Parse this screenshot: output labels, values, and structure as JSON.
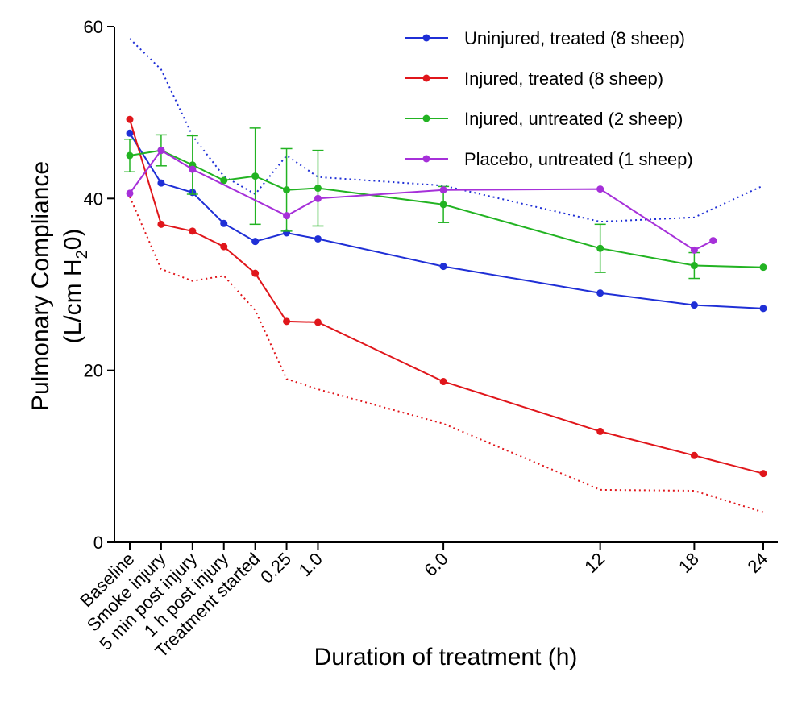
{
  "chart_data": {
    "type": "line",
    "title": "",
    "xlabel": "Duration of treatment (h)",
    "ylabel_line1": "Pulmonary Compliance",
    "ylabel_line2_parts": [
      "(L/cm H",
      "2",
      "0)"
    ],
    "ylim": [
      0,
      60
    ],
    "yticks": [
      0,
      20,
      40,
      60
    ],
    "grid": false,
    "legend_position": "top-right",
    "x_labels": [
      {
        "label": "Baseline",
        "x": -0.75
      },
      {
        "label": "Smoke injury",
        "x": -0.5
      },
      {
        "label": "5 min post injury",
        "x": -0.25
      },
      {
        "label": "1 h post injury",
        "x": 0
      },
      {
        "label": "Treatment started",
        "x": 0.25
      },
      {
        "label": "0.25",
        "x": 0.5
      },
      {
        "label": "1.0",
        "x": 0.75
      },
      {
        "label": "6.0",
        "x": 1.75
      },
      {
        "label": "12",
        "x": 3
      },
      {
        "label": "18",
        "x": 3.75
      },
      {
        "label": "24",
        "x": 4.3
      }
    ],
    "series": [
      {
        "name": "Uninjured, treated (8 sheep)",
        "color": "#1f2fd6",
        "x": [
          -0.75,
          -0.5,
          -0.25,
          0,
          0.25,
          0.5,
          0.75,
          1.75,
          3,
          3.75,
          4.3
        ],
        "y": [
          47.6,
          41.8,
          40.7,
          37.1,
          35.0,
          36.0,
          35.3,
          32.1,
          29.0,
          27.6,
          27.2
        ]
      },
      {
        "name": "Injured, treated (8 sheep)",
        "color": "#e0161b",
        "x": [
          -0.75,
          -0.5,
          -0.25,
          0,
          0.25,
          0.5,
          0.75,
          1.75,
          3,
          3.75,
          4.3
        ],
        "y": [
          49.2,
          37.0,
          36.2,
          34.4,
          31.3,
          25.7,
          25.6,
          18.7,
          12.9,
          10.1,
          8.0
        ]
      },
      {
        "name": "Injured, untreated (2 sheep)",
        "color": "#22b322",
        "x": [
          -0.75,
          -0.5,
          -0.25,
          0,
          0.25,
          0.5,
          0.75,
          1.75,
          3,
          3.75,
          4.3
        ],
        "y": [
          45.0,
          45.6,
          43.9,
          42.1,
          42.6,
          41.0,
          41.2,
          39.3,
          34.2,
          32.2,
          32.0
        ],
        "err": [
          1.9,
          1.8,
          3.4,
          0,
          5.6,
          4.8,
          4.4,
          2.1,
          2.8,
          1.5,
          0
        ]
      },
      {
        "name": "Placebo, untreated (1 sheep)",
        "color": "#a630d9",
        "x": [
          -0.75,
          -0.5,
          -0.25,
          0.5,
          0.75,
          1.75,
          3,
          3.75,
          3.9
        ],
        "y": [
          40.6,
          45.6,
          43.4,
          38.0,
          40.0,
          41.0,
          41.1,
          34.0,
          35.1
        ]
      }
    ],
    "bands": [
      {
        "color": "#1f2fd6",
        "x": [
          -0.75,
          -0.5,
          -0.25,
          0,
          0.25,
          0.5,
          0.75,
          1.75,
          3,
          3.75,
          4.3
        ],
        "y": [
          58.6,
          55.0,
          47.3,
          42.6,
          40.5,
          45.0,
          42.5,
          41.5,
          37.3,
          37.8,
          41.5
        ]
      },
      {
        "color": "#e0161b",
        "x": [
          -0.75,
          -0.5,
          -0.25,
          0,
          0.25,
          0.5,
          0.75,
          1.75,
          3,
          3.75,
          4.3
        ],
        "y": [
          40.2,
          31.8,
          30.4,
          31.0,
          27.0,
          19.0,
          17.8,
          13.8,
          6.1,
          6.0,
          3.5
        ]
      }
    ]
  }
}
